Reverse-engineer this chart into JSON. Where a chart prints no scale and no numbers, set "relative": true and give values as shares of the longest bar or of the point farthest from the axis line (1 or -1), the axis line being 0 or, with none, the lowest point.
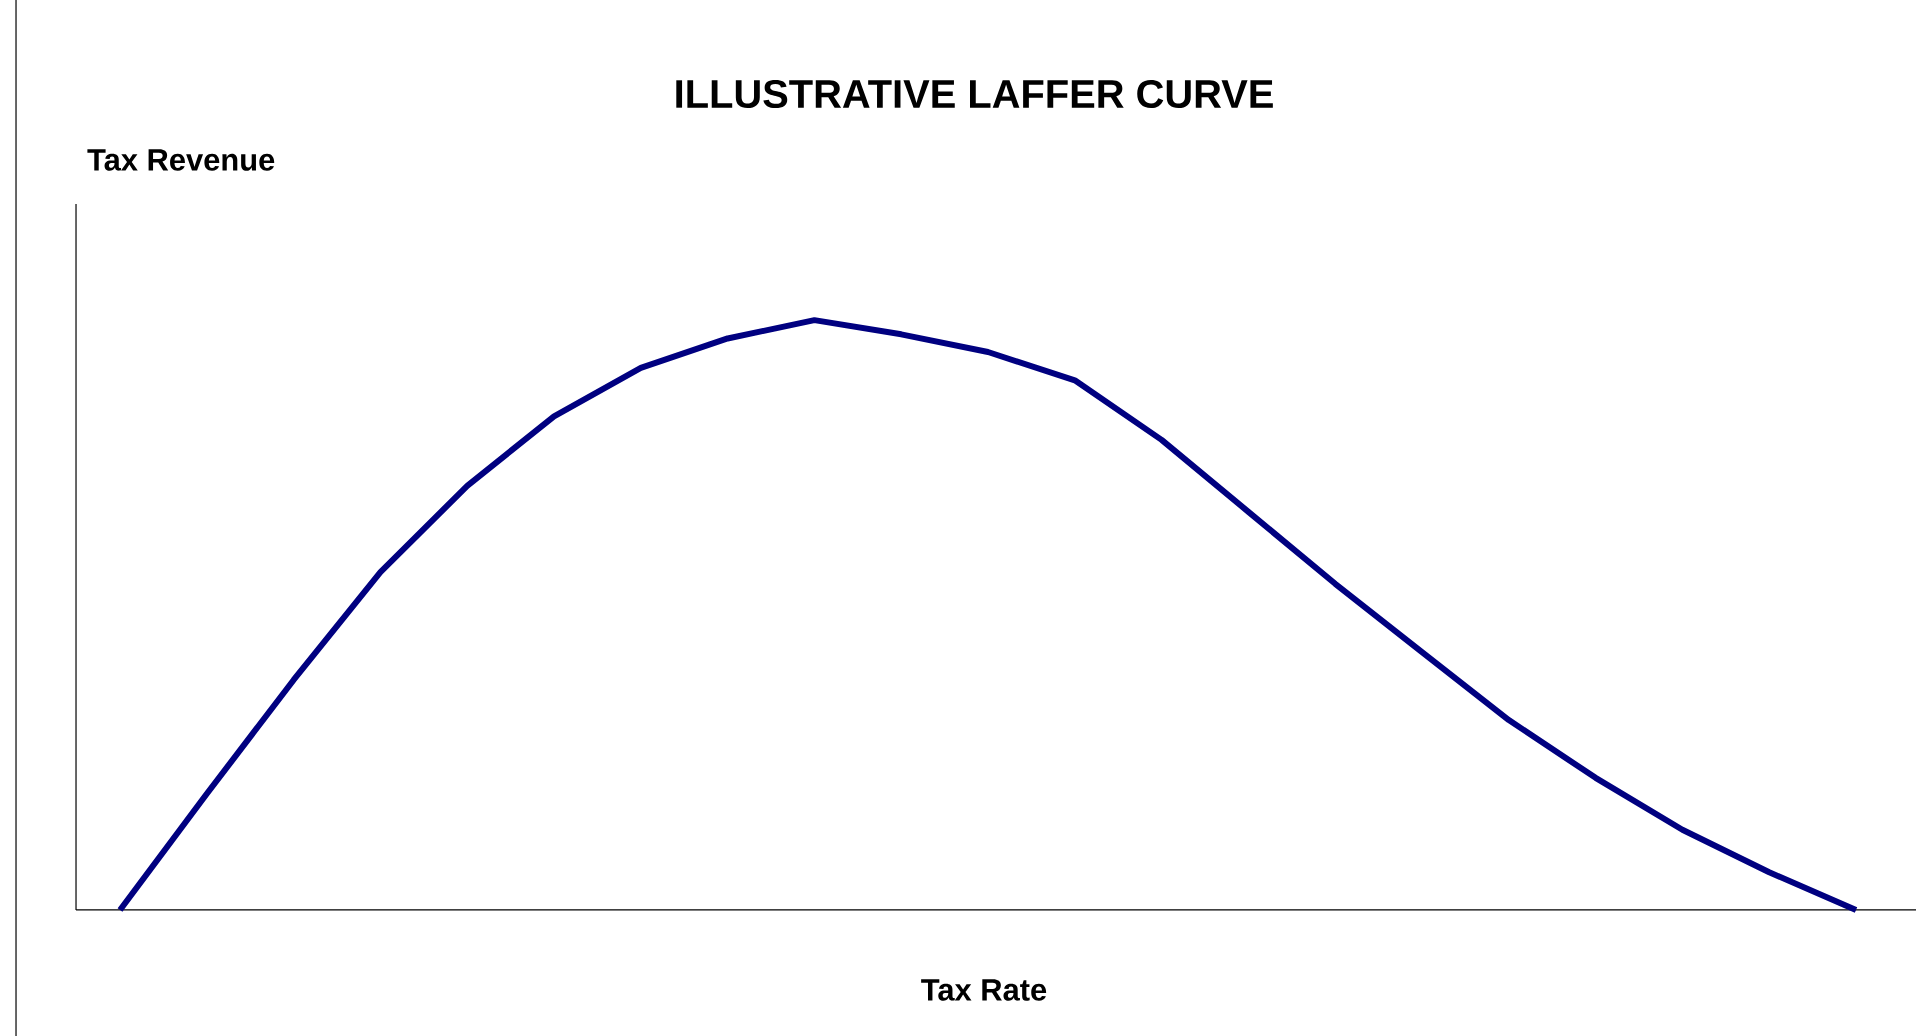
{
  "chart_data": {
    "type": "line",
    "title": "ILLUSTRATIVE LAFFER CURVE",
    "xlabel": "Tax Rate",
    "ylabel": "Tax Revenue",
    "relative": true,
    "categories": [
      null,
      null,
      null,
      null,
      null,
      null,
      null,
      null,
      null,
      null,
      null,
      null,
      null,
      null,
      null,
      null,
      null,
      null,
      null,
      null,
      null
    ],
    "series": [
      {
        "color": "#000080",
        "values": [
          0,
          0.197,
          0.39,
          0.573,
          0.719,
          0.837,
          0.919,
          0.969,
          1,
          0.976,
          0.946,
          0.898,
          0.797,
          0.675,
          0.553,
          0.437,
          0.322,
          0.224,
          0.136,
          0.064,
          0
        ]
      }
    ]
  }
}
